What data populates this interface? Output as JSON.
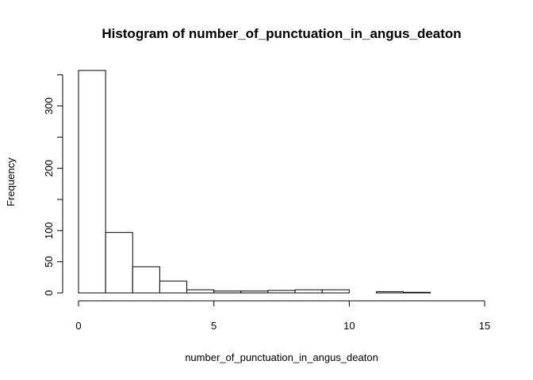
{
  "chart_data": {
    "type": "bar",
    "title": "Histogram of number_of_punctuation_in_angus_deaton",
    "xlabel": "number_of_punctuation_in_angus_deaton",
    "ylabel": "Frequency",
    "bins": [
      [
        0,
        1
      ],
      [
        1,
        2
      ],
      [
        2,
        3
      ],
      [
        3,
        4
      ],
      [
        4,
        5
      ],
      [
        5,
        6
      ],
      [
        6,
        7
      ],
      [
        7,
        8
      ],
      [
        8,
        9
      ],
      [
        9,
        10
      ],
      [
        10,
        11
      ],
      [
        11,
        12
      ],
      [
        12,
        13
      ],
      [
        13,
        14
      ],
      [
        14,
        15
      ]
    ],
    "values": [
      357,
      97,
      42,
      19,
      5,
      3,
      3,
      4,
      5,
      5,
      0,
      2,
      1,
      0,
      0
    ],
    "xlim": [
      0,
      15
    ],
    "ylim": [
      0,
      357
    ],
    "xticks": [
      0,
      5,
      10,
      15
    ],
    "yticks": [
      0,
      50,
      100,
      200,
      300
    ],
    "yticks_minor": [
      150,
      250,
      350
    ],
    "grid": false,
    "colors": {
      "fill": "#ffffff",
      "stroke": "#000000"
    }
  }
}
